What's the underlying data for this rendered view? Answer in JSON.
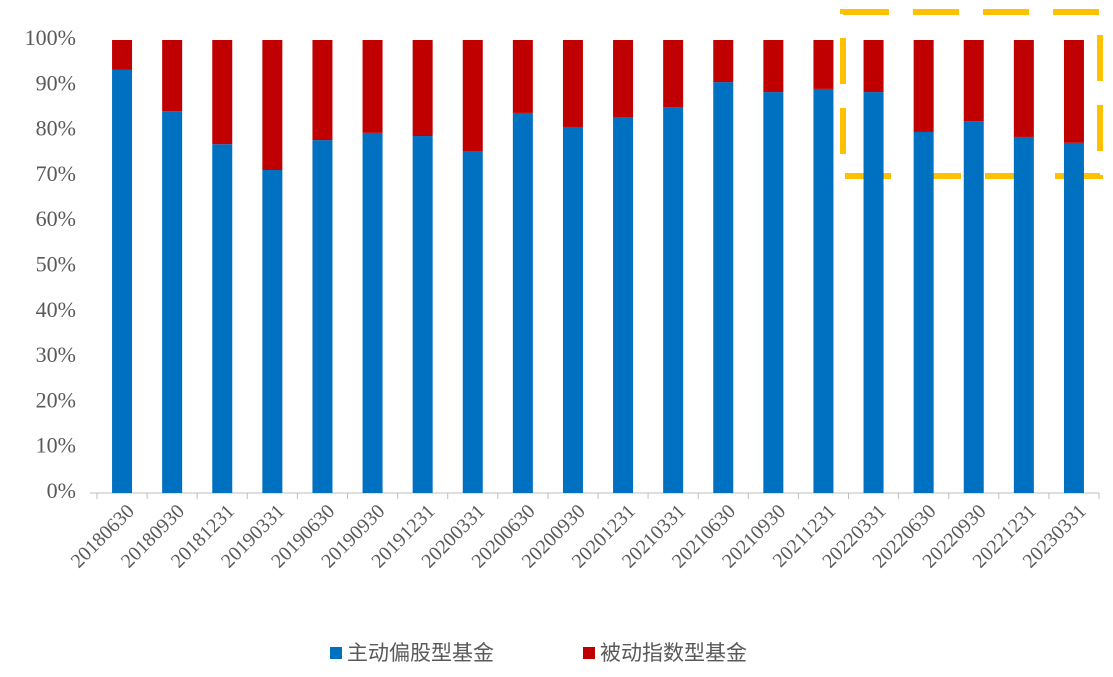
{
  "chart_data": {
    "type": "stacked_bar",
    "categories": [
      "20180630",
      "20180930",
      "20181231",
      "20190331",
      "20190630",
      "20190930",
      "20191231",
      "20200331",
      "20200630",
      "20200930",
      "20201231",
      "20210331",
      "20210630",
      "20210930",
      "20211231",
      "20220331",
      "20220630",
      "20220930",
      "20221231",
      "20230331"
    ],
    "series": [
      {
        "name": "主动偏股型基金",
        "color": "#0070c0",
        "values": [
          93.4,
          84.3,
          77.0,
          71.3,
          77.9,
          79.5,
          78.8,
          75.5,
          83.9,
          80.8,
          83.0,
          85.2,
          90.7,
          88.5,
          89.2,
          88.5,
          79.7,
          82.1,
          78.6,
          77.3
        ]
      },
      {
        "name": "被动指数型基金",
        "color": "#c00000",
        "values": [
          6.6,
          15.7,
          23.0,
          28.7,
          22.1,
          20.5,
          21.2,
          24.5,
          16.1,
          19.2,
          17.0,
          14.8,
          9.3,
          11.5,
          10.8,
          11.5,
          20.3,
          17.9,
          21.4,
          22.7
        ]
      }
    ],
    "ylim": [
      0,
      100
    ],
    "yticks": [
      {
        "value": 0,
        "label": "0%"
      },
      {
        "value": 10,
        "label": "10%"
      },
      {
        "value": 20,
        "label": "20%"
      },
      {
        "value": 30,
        "label": "30%"
      },
      {
        "value": 40,
        "label": "40%"
      },
      {
        "value": 50,
        "label": "50%"
      },
      {
        "value": 60,
        "label": "60%"
      },
      {
        "value": 70,
        "label": "70%"
      },
      {
        "value": 80,
        "label": "80%"
      },
      {
        "value": 90,
        "label": "90%"
      },
      {
        "value": 100,
        "label": "100%"
      }
    ],
    "legend": "bottom"
  }
}
